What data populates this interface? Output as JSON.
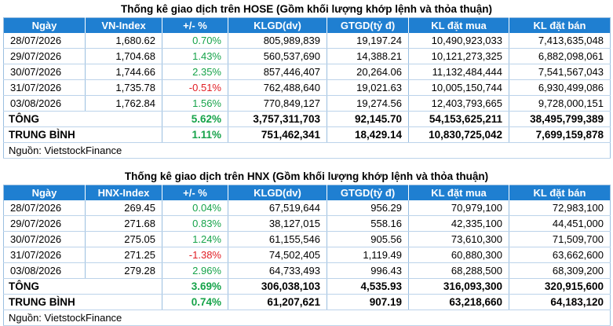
{
  "hose": {
    "title": "Thống kê giao dịch trên HOSE (Gồm khối lượng khớp lệnh và thỏa thuận)",
    "headers": [
      "Ngày",
      "VN-Index",
      "+/- %",
      "KLGD(dv)",
      "GTGD(tỷ đ)",
      "KL đặt mua",
      "KL đặt bán"
    ],
    "rows": [
      [
        "28/07/2026",
        "1,680.62",
        "0.70%",
        "805,989,839",
        "19,197.24",
        "10,490,923,033",
        "7,413,635,048"
      ],
      [
        "29/07/2026",
        "1,704.68",
        "1.43%",
        "560,537,690",
        "14,388.21",
        "10,121,273,325",
        "6,882,098,061"
      ],
      [
        "30/07/2026",
        "1,744.66",
        "2.35%",
        "857,446,407",
        "20,264.06",
        "11,132,484,444",
        "7,541,567,043"
      ],
      [
        "31/07/2026",
        "1,735.78",
        "-0.51%",
        "762,488,640",
        "19,021.63",
        "10,005,150,744",
        "6,930,499,086"
      ],
      [
        "03/08/2026",
        "1,762.84",
        "1.56%",
        "770,849,127",
        "19,274.56",
        "12,403,793,665",
        "9,728,000,151"
      ]
    ],
    "total": [
      "TÔNG",
      "5.62%",
      "3,757,311,703",
      "92,145.70",
      "54,153,625,211",
      "38,495,799,389"
    ],
    "average": [
      "TRUNG BÌNH",
      "1.11%",
      "751,462,341",
      "18,429.14",
      "10,830,725,042",
      "7,699,159,878"
    ],
    "source": "Nguồn: VietstockFinance"
  },
  "hnx": {
    "title": "Thống kê giao dịch trên HNX (Gồm khối lượng khớp lệnh và thỏa thuận)",
    "headers": [
      "Ngày",
      "HNX-Index",
      "+/- %",
      "KLGD(dv)",
      "GTGD(tỷ đ)",
      "KL đặt mua",
      "KL đặt bán"
    ],
    "rows": [
      [
        "28/07/2026",
        "269.45",
        "0.04%",
        "67,519,644",
        "956.29",
        "70,979,100",
        "72,983,100"
      ],
      [
        "29/07/2026",
        "271.68",
        "0.83%",
        "38,127,015",
        "558.16",
        "42,335,100",
        "44,451,000"
      ],
      [
        "30/07/2026",
        "275.05",
        "1.24%",
        "61,155,546",
        "905.56",
        "73,610,300",
        "71,509,700"
      ],
      [
        "31/07/2026",
        "271.25",
        "-1.38%",
        "74,502,405",
        "1,119.49",
        "60,880,300",
        "63,662,600"
      ],
      [
        "03/08/2026",
        "279.28",
        "2.96%",
        "64,733,493",
        "996.43",
        "68,288,500",
        "68,309,200"
      ]
    ],
    "total": [
      "TÔNG",
      "3.69%",
      "306,038,103",
      "4,535.93",
      "316,093,300",
      "320,915,600"
    ],
    "average": [
      "TRUNG BÌNH",
      "0.74%",
      "61,207,621",
      "907.19",
      "63,218,660",
      "64,183,120"
    ],
    "source": "Nguồn: VietstockFinance"
  },
  "colors": {
    "header_bg": "#1f7fd1",
    "positive": "#16a34a",
    "negative": "#e11d24"
  }
}
